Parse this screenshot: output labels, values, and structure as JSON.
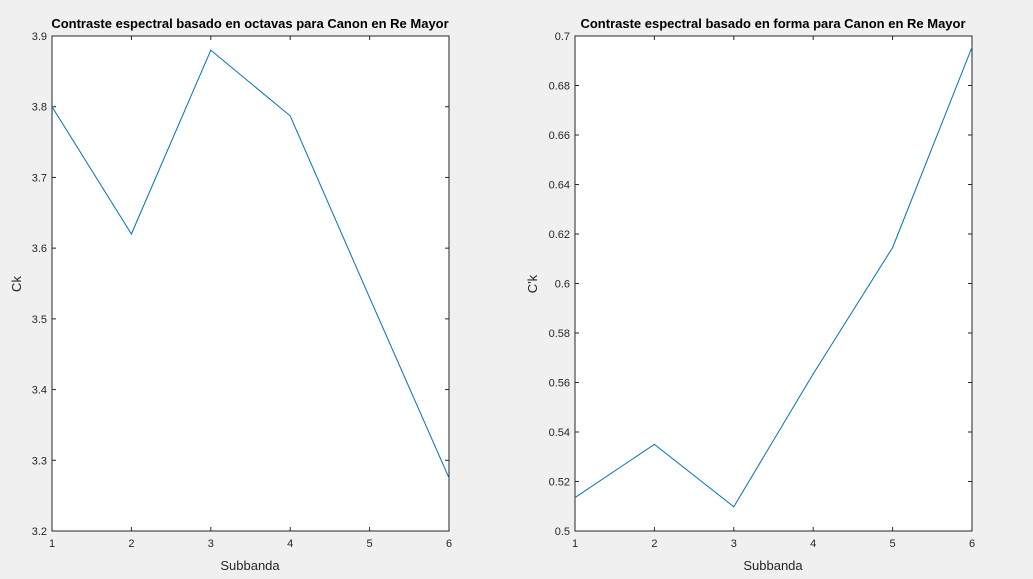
{
  "chart_data": [
    {
      "type": "line",
      "title": "Contraste espectral basado en octavas para Canon en Re Mayor",
      "xlabel": "Subbanda",
      "ylabel": "Ck",
      "x": [
        1,
        2,
        3,
        4,
        5,
        6
      ],
      "xlim": [
        1,
        6
      ],
      "ylim": [
        3.2,
        3.9
      ],
      "xticks": [
        "1",
        "2",
        "3",
        "4",
        "5",
        "6"
      ],
      "yticks": [
        "3.2",
        "3.3",
        "3.4",
        "3.5",
        "3.6",
        "3.7",
        "3.8",
        "3.9"
      ],
      "grid": false,
      "series": [
        {
          "values": [
            3.8,
            3.62,
            3.88,
            3.787,
            3.53,
            3.275
          ],
          "color": "#0072bd"
        }
      ]
    },
    {
      "type": "line",
      "title": "Contraste espectral basado en forma para Canon en Re Mayor",
      "xlabel": "Subbanda",
      "ylabel": "C'k",
      "x": [
        1,
        2,
        3,
        4,
        5,
        6
      ],
      "xlim": [
        1,
        6
      ],
      "ylim": [
        0.5,
        0.7
      ],
      "xticks": [
        "1",
        "2",
        "3",
        "4",
        "5",
        "6"
      ],
      "yticks": [
        "0.5",
        "0.52",
        "0.54",
        "0.56",
        "0.58",
        "0.6",
        "0.62",
        "0.64",
        "0.66",
        "0.68",
        "0.7"
      ],
      "grid": false,
      "series": [
        {
          "values": [
            0.5135,
            0.535,
            0.5098,
            0.5635,
            0.6145,
            0.6955
          ],
          "color": "#0072bd"
        }
      ]
    }
  ]
}
